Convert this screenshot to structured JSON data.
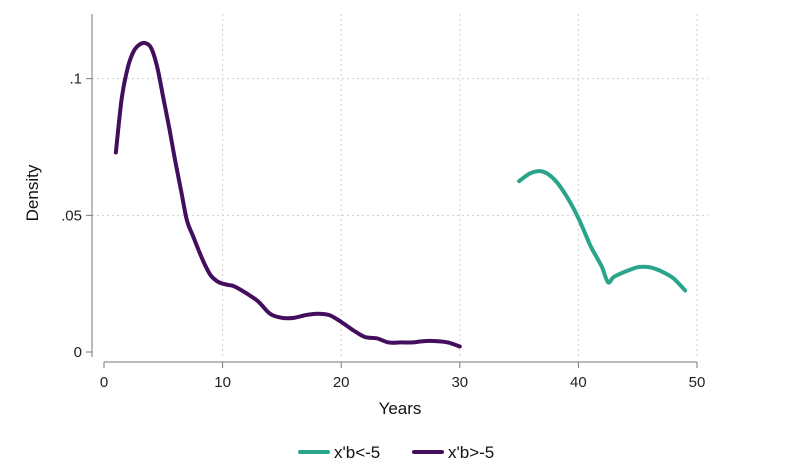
{
  "chart_data": {
    "type": "line",
    "title": "",
    "xlabel": "Years",
    "ylabel": "Density",
    "xlim": [
      0,
      50
    ],
    "ylim": [
      0,
      0.12
    ],
    "x_ticks": [
      0,
      10,
      20,
      30,
      40,
      50
    ],
    "x_tick_labels": [
      "0",
      "10",
      "20",
      "30",
      "40",
      "50"
    ],
    "y_ticks": [
      0,
      0.05,
      0.1
    ],
    "y_tick_labels": [
      "0",
      ".05",
      ".1"
    ],
    "grid": true,
    "legend_position": "bottom",
    "series": [
      {
        "name": "x'b<-5",
        "color": "#2aa58a",
        "x": [
          35,
          36,
          37,
          38,
          39,
          40,
          41,
          41.5,
          42,
          42.5,
          43,
          44,
          45,
          46,
          47,
          48,
          49
        ],
        "y": [
          0.0625,
          0.0655,
          0.066,
          0.063,
          0.057,
          0.049,
          0.039,
          0.035,
          0.031,
          0.0255,
          0.0275,
          0.0295,
          0.031,
          0.031,
          0.0295,
          0.027,
          0.0225
        ]
      },
      {
        "name": "x'b>-5",
        "color": "#430e5e",
        "x": [
          1,
          1.5,
          2,
          2.5,
          3,
          3.5,
          4,
          4.5,
          5,
          5.5,
          6,
          6.5,
          7,
          7.5,
          8,
          8.5,
          9,
          9.5,
          10,
          10.5,
          11,
          12,
          13,
          14,
          15,
          16,
          17,
          18,
          19,
          20,
          21,
          22,
          23,
          24,
          25,
          26,
          27,
          28,
          29,
          30
        ],
        "y": [
          0.073,
          0.093,
          0.104,
          0.11,
          0.1125,
          0.113,
          0.111,
          0.104,
          0.093,
          0.082,
          0.07,
          0.059,
          0.048,
          0.0425,
          0.037,
          0.032,
          0.028,
          0.026,
          0.025,
          0.0245,
          0.024,
          0.0215,
          0.0185,
          0.014,
          0.0125,
          0.0125,
          0.0135,
          0.014,
          0.0135,
          0.011,
          0.008,
          0.0055,
          0.005,
          0.0035,
          0.0035,
          0.0035,
          0.004,
          0.004,
          0.0035,
          0.002
        ]
      }
    ]
  }
}
